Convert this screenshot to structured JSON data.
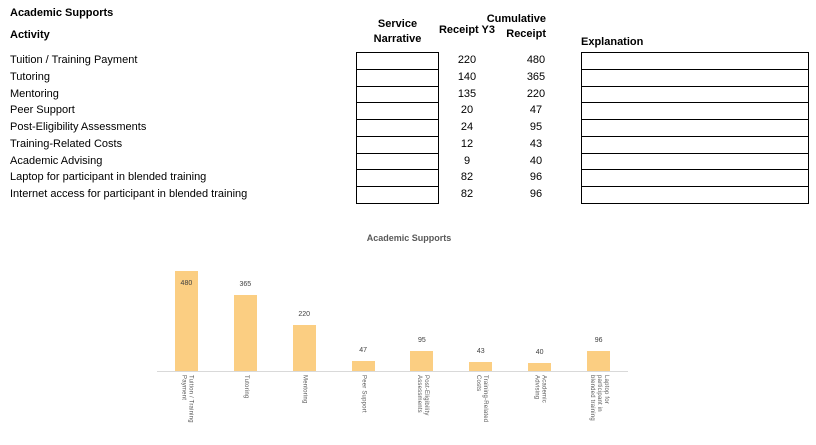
{
  "sheet": {
    "title": "Academic Supports",
    "columns": {
      "activity": "Activity",
      "service_narrative": "Service Narrative",
      "receipt_y3": "Receipt Y3",
      "cumulative_receipt": "Cumulative Receipt",
      "explanation": "Explanation"
    },
    "rows": [
      {
        "activity": "Tuition / Training Payment",
        "service_narrative": "",
        "receipt_y3": "220",
        "cumulative_receipt": "480",
        "explanation": ""
      },
      {
        "activity": "Tutoring",
        "service_narrative": "",
        "receipt_y3": "140",
        "cumulative_receipt": "365",
        "explanation": ""
      },
      {
        "activity": "Mentoring",
        "service_narrative": "",
        "receipt_y3": "135",
        "cumulative_receipt": "220",
        "explanation": ""
      },
      {
        "activity": "Peer Support",
        "service_narrative": "",
        "receipt_y3": "20",
        "cumulative_receipt": "47",
        "explanation": ""
      },
      {
        "activity": "Post-Eligibility Assessments",
        "service_narrative": "",
        "receipt_y3": "24",
        "cumulative_receipt": "95",
        "explanation": ""
      },
      {
        "activity": "Training-Related Costs",
        "service_narrative": "",
        "receipt_y3": "12",
        "cumulative_receipt": "43",
        "explanation": ""
      },
      {
        "activity": "Academic Advising",
        "service_narrative": "",
        "receipt_y3": "9",
        "cumulative_receipt": "40",
        "explanation": ""
      },
      {
        "activity": "Laptop for participant in blended training",
        "service_narrative": "",
        "receipt_y3": "82",
        "cumulative_receipt": "96",
        "explanation": ""
      },
      {
        "activity": "Internet access for participant in blended training",
        "service_narrative": "",
        "receipt_y3": "82",
        "cumulative_receipt": "96",
        "explanation": ""
      }
    ]
  },
  "chart_data": {
    "type": "bar",
    "title": "Academic Supports",
    "categories": [
      "Tuition / Training Payment",
      "Tutoring",
      "Mentoring",
      "Peer Support",
      "Post-Eligibility Assessments",
      "Training-Related Costs",
      "Academic Advising",
      "Laptop for participant in blended training"
    ],
    "category_lines": [
      [
        "Tuition / Training",
        "Payment"
      ],
      [
        "Tutoring"
      ],
      [
        "Mentoring"
      ],
      [
        "Peer Support"
      ],
      [
        "Post-Eligibility",
        "Assessments"
      ],
      [
        "Training-Related",
        "Costs"
      ],
      [
        "Academic",
        "Advising"
      ],
      [
        "Laptop for",
        "participant in",
        "blended training"
      ]
    ],
    "values": [
      480,
      365,
      220,
      47,
      95,
      43,
      40,
      96
    ],
    "data_labels": [
      480,
      365,
      220,
      47,
      95,
      43,
      40,
      96
    ],
    "xlabel": "",
    "ylabel": "",
    "ylim": [
      0,
      480
    ],
    "gridlines": false,
    "legend": false,
    "bar_color": "#fbce82",
    "axis_color": "#d9d9d9",
    "title_color": "#595959",
    "label_color": "#404040"
  }
}
